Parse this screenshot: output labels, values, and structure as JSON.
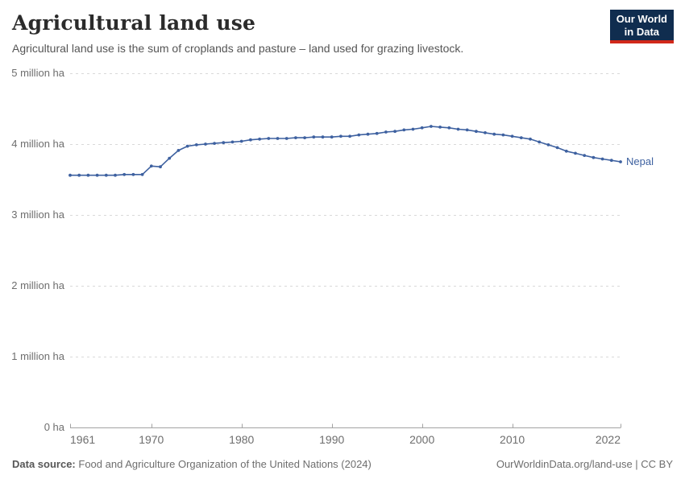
{
  "header": {
    "title": "Agricultural land use",
    "subtitle": "Agricultural land use is the sum of croplands and pasture – land used for grazing livestock.",
    "logo": {
      "line1": "Our World",
      "line2": "in Data"
    }
  },
  "chart_data": {
    "type": "line",
    "title": "Agricultural land use",
    "unit": "million ha",
    "xlim": [
      1961,
      2022
    ],
    "ylim": [
      0,
      5
    ],
    "grid": "horizontal-dashed",
    "legend_position": "end-of-line",
    "x_ticks": [
      1961,
      1970,
      1980,
      1990,
      2000,
      2010,
      2022
    ],
    "y_ticks": [
      {
        "value": 0,
        "label": "0 ha"
      },
      {
        "value": 1,
        "label": "1 million ha"
      },
      {
        "value": 2,
        "label": "2 million ha"
      },
      {
        "value": 3,
        "label": "3 million ha"
      },
      {
        "value": 4,
        "label": "4 million ha"
      },
      {
        "value": 5,
        "label": "5 million ha"
      }
    ],
    "x": [
      1961,
      1962,
      1963,
      1964,
      1965,
      1966,
      1967,
      1968,
      1969,
      1970,
      1971,
      1972,
      1973,
      1974,
      1975,
      1976,
      1977,
      1978,
      1979,
      1980,
      1981,
      1982,
      1983,
      1984,
      1985,
      1986,
      1987,
      1988,
      1989,
      1990,
      1991,
      1992,
      1993,
      1994,
      1995,
      1996,
      1997,
      1998,
      1999,
      2000,
      2001,
      2002,
      2003,
      2004,
      2005,
      2006,
      2007,
      2008,
      2009,
      2010,
      2011,
      2012,
      2013,
      2014,
      2015,
      2016,
      2017,
      2018,
      2019,
      2020,
      2021,
      2022
    ],
    "series": [
      {
        "name": "Nepal",
        "color": "#3e61a0",
        "values": [
          3.56,
          3.56,
          3.56,
          3.56,
          3.56,
          3.56,
          3.57,
          3.57,
          3.57,
          3.69,
          3.68,
          3.8,
          3.91,
          3.97,
          3.99,
          4.0,
          4.01,
          4.02,
          4.03,
          4.04,
          4.06,
          4.07,
          4.08,
          4.08,
          4.08,
          4.09,
          4.09,
          4.1,
          4.1,
          4.1,
          4.11,
          4.11,
          4.13,
          4.14,
          4.15,
          4.17,
          4.18,
          4.2,
          4.21,
          4.23,
          4.25,
          4.24,
          4.23,
          4.21,
          4.2,
          4.18,
          4.16,
          4.14,
          4.13,
          4.11,
          4.09,
          4.07,
          4.03,
          3.99,
          3.95,
          3.9,
          3.87,
          3.84,
          3.81,
          3.79,
          3.77,
          3.75
        ]
      }
    ],
    "colors": {
      "line": "#3e61a0",
      "grid": "#d9d9d9",
      "axis": "#a3a3a3",
      "axis_text": "#6e6e6e"
    }
  },
  "footer": {
    "source_label": "Data source:",
    "source_text": "Food and Agriculture Organization of the United Nations (2024)",
    "credit": "OurWorldinData.org/land-use | CC BY"
  }
}
